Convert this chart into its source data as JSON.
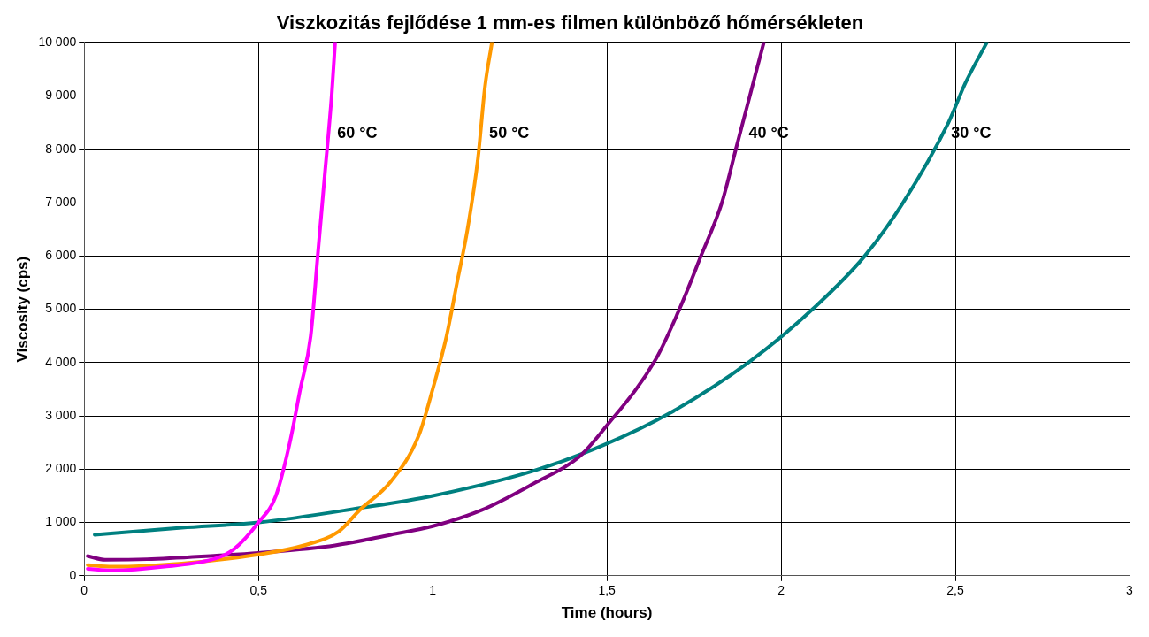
{
  "chart_data": {
    "type": "line",
    "title": "Viszkozitás fejlődése 1 mm-es filmen különböző hőmérsékleten",
    "xlabel": "Time (hours)",
    "ylabel": "Viscosity (cps)",
    "xlim": [
      0,
      3
    ],
    "xticks": [
      0,
      {
        "value": 0.5,
        "label": "0,5"
      },
      1,
      {
        "value": 1.5,
        "label": "1,5"
      },
      2,
      {
        "value": 2.5,
        "label": "2,5"
      },
      3
    ],
    "ylim": [
      0,
      10000
    ],
    "yticks": [
      0,
      {
        "value": 1000,
        "label": "1 000"
      },
      {
        "value": 2000,
        "label": "2 000"
      },
      {
        "value": 3000,
        "label": "3 000"
      },
      {
        "value": 4000,
        "label": "4 000"
      },
      {
        "value": 5000,
        "label": "5 000"
      },
      {
        "value": 6000,
        "label": "6 000"
      },
      {
        "value": 7000,
        "label": "7 000"
      },
      {
        "value": 8000,
        "label": "8 000"
      },
      {
        "value": 9000,
        "label": "9 000"
      },
      {
        "value": 10000,
        "label": "10 000"
      }
    ],
    "grid": true,
    "legend": false,
    "marker": "none",
    "line_style": "solid",
    "series": [
      {
        "name": "60 °C",
        "color": "#ff00ff",
        "x": [
          0.01,
          0.08,
          0.23,
          0.38,
          0.43,
          0.5,
          0.55,
          0.59,
          0.62,
          0.65,
          0.67,
          0.69,
          0.71,
          0.72
        ],
        "values": [
          130,
          100,
          170,
          330,
          500,
          1000,
          1500,
          2500,
          3500,
          4500,
          6000,
          7500,
          9000,
          10000
        ]
      },
      {
        "name": "50 °C",
        "color": "#ff9900",
        "x": [
          0.01,
          0.08,
          0.28,
          0.5,
          0.63,
          0.73,
          0.79,
          0.88,
          0.96,
          1.0,
          1.04,
          1.07,
          1.1,
          1.13,
          1.15,
          1.17
        ],
        "values": [
          200,
          170,
          230,
          400,
          570,
          830,
          1230,
          1770,
          2630,
          3500,
          4500,
          5500,
          6500,
          7830,
          9170,
          10000
        ]
      },
      {
        "name": "40 °C",
        "color": "#800080",
        "x": [
          0.01,
          0.06,
          0.18,
          0.38,
          0.5,
          0.72,
          0.88,
          1.0,
          1.14,
          1.29,
          1.42,
          1.49,
          1.64,
          1.71,
          1.77,
          1.83,
          1.87,
          1.91,
          1.95
        ],
        "values": [
          370,
          300,
          310,
          380,
          430,
          570,
          770,
          930,
          1230,
          1730,
          2230,
          2740,
          4060,
          5030,
          6000,
          7000,
          8000,
          9000,
          10000
        ]
      },
      {
        "name": "30 °C",
        "color": "#008080",
        "x": [
          0.03,
          0.28,
          0.5,
          0.79,
          1.0,
          1.29,
          1.49,
          1.68,
          1.91,
          2.1,
          2.24,
          2.35,
          2.48,
          2.53,
          2.59
        ],
        "values": [
          770,
          900,
          1000,
          1270,
          1500,
          1970,
          2450,
          3050,
          4020,
          5060,
          6000,
          7000,
          8500,
          9260,
          10000
        ]
      }
    ]
  }
}
